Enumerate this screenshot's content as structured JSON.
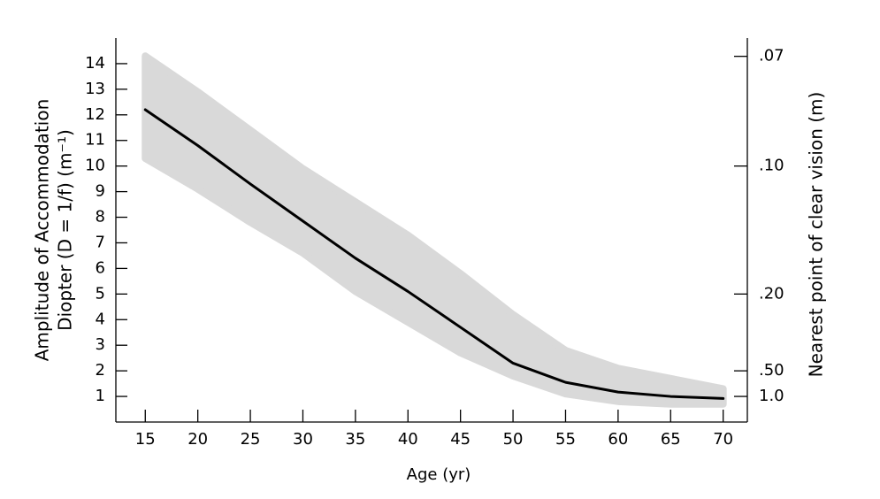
{
  "chart_data": {
    "type": "line",
    "xlabel": "Age (yr)",
    "ylabel": [
      "Amplitude of Accommodation",
      "Diopter (D = 1/f) (m⁻¹)"
    ],
    "y2label": "Nearest point of clear vision (m)",
    "x": [
      15,
      20,
      25,
      30,
      35,
      40,
      45,
      50,
      55,
      60,
      65,
      70
    ],
    "series": [
      {
        "color": "#000000",
        "values": [
          12.2,
          10.8,
          9.3,
          7.85,
          6.4,
          5.1,
          3.7,
          2.3,
          1.55,
          1.17,
          1.0,
          0.92
        ]
      }
    ],
    "band": {
      "color": "#d9d9d9",
      "upper": [
        14.3,
        12.9,
        11.4,
        9.9,
        8.6,
        7.3,
        5.8,
        4.2,
        2.8,
        2.1,
        1.7,
        1.3
      ],
      "lower": [
        10.3,
        9.1,
        7.8,
        6.6,
        5.1,
        3.9,
        2.7,
        1.8,
        1.1,
        0.8,
        0.7,
        0.7
      ]
    },
    "xlim": [
      12.2,
      72.3
    ],
    "xticks": [
      15,
      20,
      25,
      30,
      35,
      40,
      45,
      50,
      55,
      60,
      65,
      70
    ],
    "ylim": [
      0,
      15
    ],
    "yticks": [
      1,
      2,
      3,
      4,
      5,
      6,
      7,
      8,
      9,
      10,
      11,
      12,
      13,
      14
    ],
    "y2scale": "reciprocal",
    "y2ticks": [
      {
        "value": 0.07,
        "label": ".07"
      },
      {
        "value": 0.1,
        "label": ".10"
      },
      {
        "value": 0.2,
        "label": ".20"
      },
      {
        "value": 0.5,
        "label": ".50"
      },
      {
        "value": 1.0,
        "label": "1.0"
      }
    ]
  }
}
